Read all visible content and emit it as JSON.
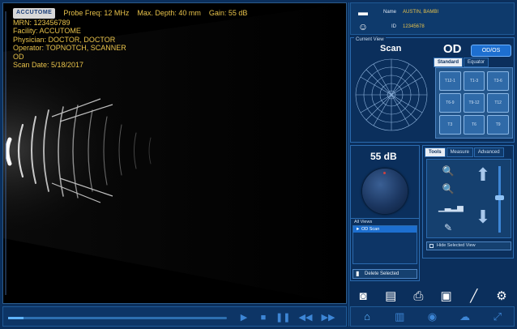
{
  "scan_info": {
    "logo": "ACCUTOME",
    "probe": "Probe Freq: 12 MHz",
    "depth": "Max. Depth: 40 mm",
    "gain": "Gain: 55 dB",
    "mrn": "MRN: 123456789",
    "facility": "Facility: ACCUTOME",
    "physician": "Physician: DOCTOR, DOCTOR",
    "operator": "Operator: TOPNOTCH, SCANNER",
    "eye": "OD",
    "scan_date": "Scan Date: 5/18/2017"
  },
  "patient": {
    "name_label": "Name",
    "name_value": "AUSTIN, BAMBI",
    "id_label": "ID",
    "id_value": "12345678"
  },
  "current_view": {
    "title": "Current View",
    "scan_label": "Scan",
    "eye_label": "OD",
    "switch_eye_button": "OD/OS",
    "tabs": [
      "Standard",
      "Equator"
    ],
    "position_buttons": [
      "T12-1",
      "T1-3",
      "T3-6",
      "T6-9",
      "T9-12",
      "T12",
      "T3",
      "T6",
      "T9"
    ]
  },
  "gain": {
    "value": "55 dB"
  },
  "tools": {
    "tabs": [
      "Tools",
      "Measure",
      "Advanced"
    ],
    "hide_selected_view": "Hide Selected View"
  },
  "views": {
    "title": "All Views",
    "items": [
      "► OD Scan"
    ],
    "delete_button": "Delete Selected"
  },
  "playback": {
    "progress": 0.07
  },
  "icons": {
    "patient_folder": "folder-icon",
    "patient_person": "person-icon",
    "actions": [
      "camera-icon",
      "document-icon",
      "printer-icon",
      "save-icon",
      "pen-icon",
      "gear-icon"
    ],
    "bottom": [
      "home-icon",
      "chart-icon",
      "settings-disc-icon",
      "cloud-icon",
      "expand-icon"
    ]
  }
}
